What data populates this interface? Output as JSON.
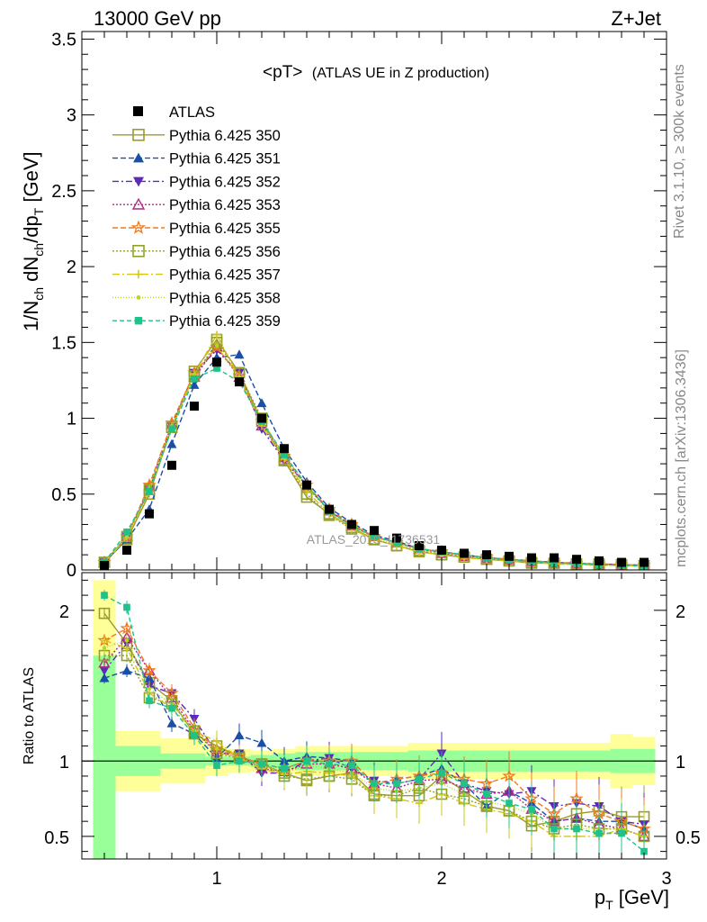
{
  "header": {
    "energy": "13000 GeV pp",
    "process": "Z+Jet"
  },
  "side_text": {
    "rivet": "Rivet 3.1.10, ≥ 300k events",
    "mcplots": "mcplots.cern.ch [arXiv:1306.3436]"
  },
  "watermark": "ATLAS_2019_I1736531",
  "chart_data": [
    {
      "type": "scatter",
      "title": "<pT> (ATLAS UE in Z production)",
      "title_main": "<pT>",
      "title_rest": "(ATLAS UE in Z production)",
      "ylabel": "1/N_ch dN_ch/dp_T [GeV]",
      "xlabel": "p_T [GeV]",
      "xlim": [
        0.4,
        3.0
      ],
      "ylim": [
        0,
        3.55
      ],
      "yticks": [
        0,
        0.5,
        1,
        1.5,
        2,
        2.5,
        3,
        3.5
      ],
      "ytick_labels": [
        "0",
        "0.5",
        "1",
        "1.5",
        "2",
        "2.5",
        "3",
        "3.5"
      ],
      "legend_placement": "top-left",
      "x": [
        0.5,
        0.6,
        0.7,
        0.8,
        0.9,
        1.0,
        1.1,
        1.2,
        1.3,
        1.4,
        1.5,
        1.6,
        1.7,
        1.8,
        1.9,
        2.0,
        2.1,
        2.2,
        2.3,
        2.4,
        2.5,
        2.6,
        2.7,
        2.8,
        2.9
      ],
      "data": {
        "name": "ATLAS",
        "values": [
          0.03,
          0.13,
          0.37,
          0.69,
          1.08,
          1.37,
          1.24,
          1.0,
          0.8,
          0.56,
          0.4,
          0.3,
          0.26,
          0.21,
          0.16,
          0.13,
          0.11,
          0.1,
          0.09,
          0.08,
          0.08,
          0.07,
          0.06,
          0.05,
          0.05
        ]
      },
      "series": [
        {
          "name": "Pythia 6.425 350",
          "color": "#9b9b2e",
          "dash": "",
          "marker": "square-open",
          "values": [
            0.05,
            0.2,
            0.5,
            0.94,
            1.31,
            1.52,
            1.3,
            0.98,
            0.72,
            0.48,
            0.37,
            0.28,
            0.2,
            0.16,
            0.12,
            0.1,
            0.085,
            0.07,
            0.06,
            0.045,
            0.045,
            0.04,
            0.04,
            0.035,
            0.03
          ]
        },
        {
          "name": "Pythia 6.425 351",
          "color": "#1a4fa8",
          "dash": "6,3",
          "marker": "triangle-up",
          "values": [
            0.05,
            0.2,
            0.4,
            0.83,
            1.22,
            1.4,
            1.42,
            1.1,
            0.8,
            0.58,
            0.41,
            0.31,
            0.23,
            0.19,
            0.14,
            0.12,
            0.1,
            0.08,
            0.07,
            0.06,
            0.05,
            0.04,
            0.04,
            0.035,
            0.03
          ]
        },
        {
          "name": "Pythia 6.425 352",
          "color": "#5b2ab8",
          "dash": "7,3,2,3",
          "marker": "triangle-down",
          "values": [
            0.05,
            0.22,
            0.53,
            0.95,
            1.3,
            1.45,
            1.3,
            0.93,
            0.72,
            0.56,
            0.39,
            0.29,
            0.22,
            0.18,
            0.14,
            0.12,
            0.1,
            0.08,
            0.07,
            0.06,
            0.05,
            0.045,
            0.04,
            0.035,
            0.03
          ]
        },
        {
          "name": "Pythia 6.425 353",
          "color": "#b52685",
          "dash": "2,2",
          "marker": "triangle-open",
          "values": [
            0.05,
            0.22,
            0.55,
            0.96,
            1.27,
            1.47,
            1.27,
            0.95,
            0.74,
            0.55,
            0.39,
            0.29,
            0.22,
            0.18,
            0.14,
            0.11,
            0.09,
            0.075,
            0.065,
            0.055,
            0.045,
            0.04,
            0.035,
            0.03,
            0.025
          ]
        },
        {
          "name": "Pythia 6.425 355",
          "color": "#f07a1f",
          "dash": "6,3",
          "marker": "star-open",
          "values": [
            0.05,
            0.22,
            0.56,
            0.97,
            1.3,
            1.47,
            1.28,
            0.98,
            0.75,
            0.56,
            0.4,
            0.3,
            0.22,
            0.18,
            0.14,
            0.12,
            0.095,
            0.085,
            0.07,
            0.06,
            0.05,
            0.045,
            0.04,
            0.035,
            0.03
          ]
        },
        {
          "name": "Pythia 6.425 356",
          "color": "#8fa126",
          "dash": "2,2",
          "marker": "square-open",
          "values": [
            0.05,
            0.22,
            0.53,
            0.94,
            1.28,
            1.5,
            1.3,
            1.0,
            0.73,
            0.5,
            0.36,
            0.27,
            0.2,
            0.16,
            0.13,
            0.1,
            0.085,
            0.07,
            0.06,
            0.05,
            0.045,
            0.04,
            0.035,
            0.03,
            0.025
          ]
        },
        {
          "name": "Pythia 6.425 357",
          "color": "#d4c416",
          "dash": "8,3,2,3",
          "marker": "cross",
          "values": [
            0.05,
            0.21,
            0.52,
            0.93,
            1.29,
            1.55,
            1.27,
            0.95,
            0.73,
            0.52,
            0.37,
            0.27,
            0.2,
            0.16,
            0.12,
            0.1,
            0.08,
            0.07,
            0.06,
            0.05,
            0.04,
            0.035,
            0.03,
            0.03,
            0.025
          ]
        },
        {
          "name": "Pythia 6.425 358",
          "color": "#b8d626",
          "dash": "1,2",
          "marker": "dot",
          "values": [
            0.05,
            0.22,
            0.54,
            0.95,
            1.29,
            1.48,
            1.27,
            0.97,
            0.74,
            0.55,
            0.38,
            0.28,
            0.21,
            0.17,
            0.13,
            0.11,
            0.09,
            0.075,
            0.065,
            0.055,
            0.045,
            0.04,
            0.035,
            0.03,
            0.025
          ]
        },
        {
          "name": "Pythia 6.425 359",
          "color": "#1fc38a",
          "dash": "5,3",
          "marker": "square-filled",
          "values": [
            0.05,
            0.25,
            0.52,
            0.93,
            1.26,
            1.33,
            1.24,
            0.98,
            0.76,
            0.56,
            0.39,
            0.29,
            0.22,
            0.18,
            0.14,
            0.12,
            0.1,
            0.08,
            0.065,
            0.055,
            0.045,
            0.04,
            0.035,
            0.03,
            0.025
          ]
        }
      ]
    },
    {
      "type": "scatter",
      "title": "",
      "ylabel": "Ratio to ATLAS",
      "xlabel": "p_T [GeV]",
      "xlim": [
        0.4,
        3.0
      ],
      "ylim": [
        0.35,
        2.25
      ],
      "yticks": [
        0.5,
        1,
        2
      ],
      "ytick_labels": [
        "0.5",
        "1",
        "2"
      ],
      "xticks": [
        1,
        2,
        3
      ],
      "xtick_labels": [
        "1",
        "2",
        "3"
      ],
      "reference_line": 1,
      "band_inner_upper": [
        1.7,
        1.1,
        1.1,
        1.05,
        1.05,
        1.03,
        1.03,
        1.04,
        1.05,
        1.06,
        1.06,
        1.06,
        1.06,
        1.06,
        1.07,
        1.07,
        1.07,
        1.07,
        1.07,
        1.07,
        1.07,
        1.07,
        1.07,
        1.08,
        1.08
      ],
      "band_inner_lower": [
        0.3,
        0.9,
        0.9,
        0.95,
        0.95,
        0.97,
        0.97,
        0.96,
        0.95,
        0.94,
        0.94,
        0.94,
        0.94,
        0.94,
        0.93,
        0.93,
        0.93,
        0.93,
        0.93,
        0.93,
        0.93,
        0.93,
        0.93,
        0.92,
        0.92
      ],
      "band_outer_upper": [
        2.2,
        1.2,
        1.2,
        1.15,
        1.15,
        1.1,
        1.08,
        1.07,
        1.08,
        1.1,
        1.1,
        1.1,
        1.1,
        1.1,
        1.12,
        1.12,
        1.12,
        1.12,
        1.12,
        1.12,
        1.12,
        1.12,
        1.12,
        1.18,
        1.16
      ],
      "band_outer_lower": [
        0.3,
        0.8,
        0.8,
        0.85,
        0.85,
        0.9,
        0.92,
        0.93,
        0.92,
        0.9,
        0.9,
        0.9,
        0.9,
        0.9,
        0.88,
        0.88,
        0.88,
        0.88,
        0.88,
        0.88,
        0.88,
        0.88,
        0.88,
        0.82,
        0.84
      ],
      "series": [
        {
          "name": "Pythia 6.425 350",
          "values": [
            1.98,
            1.78,
            1.52,
            1.4,
            1.18,
            1.1,
            1.03,
            0.98,
            0.92,
            0.87,
            0.9,
            0.92,
            0.78,
            0.77,
            0.77,
            0.9,
            0.8,
            0.7,
            0.67,
            0.57,
            0.6,
            0.65,
            0.67,
            0.63,
            0.63
          ]
        },
        {
          "name": "Pythia 6.425 351",
          "values": [
            1.55,
            1.6,
            1.55,
            1.25,
            1.18,
            1.02,
            1.17,
            1.12,
            1.0,
            1.03,
            1.02,
            1.0,
            0.85,
            0.88,
            0.9,
            0.95,
            0.85,
            0.7,
            0.8,
            0.72,
            0.6,
            0.62,
            0.6,
            0.6,
            0.55
          ]
        },
        {
          "name": "Pythia 6.425 352",
          "values": [
            1.6,
            1.78,
            1.5,
            1.45,
            1.28,
            1.05,
            1.05,
            0.92,
            0.92,
            1.0,
            1.02,
            0.95,
            0.87,
            0.85,
            0.88,
            1.05,
            0.85,
            0.8,
            0.78,
            0.8,
            0.7,
            0.72,
            0.7,
            0.6,
            0.58
          ]
        },
        {
          "name": "Pythia 6.425 353",
          "values": [
            1.65,
            1.82,
            1.6,
            1.42,
            1.2,
            1.06,
            1.03,
            0.95,
            0.93,
            0.98,
            0.98,
            0.95,
            0.85,
            0.82,
            0.87,
            0.88,
            0.82,
            0.78,
            0.8,
            0.68,
            0.6,
            0.62,
            0.58,
            0.55,
            0.5
          ]
        },
        {
          "name": "Pythia 6.425 355",
          "values": [
            1.8,
            1.88,
            1.6,
            1.45,
            1.22,
            1.08,
            1.03,
            0.98,
            0.95,
            1.0,
            1.0,
            1.0,
            0.85,
            0.88,
            0.9,
            0.92,
            0.88,
            0.85,
            0.9,
            0.75,
            0.65,
            0.75,
            0.65,
            0.6,
            0.55
          ]
        },
        {
          "name": "Pythia 6.425 356",
          "values": [
            1.7,
            1.7,
            1.42,
            1.38,
            1.2,
            1.05,
            1.02,
            0.98,
            0.9,
            0.88,
            0.9,
            0.88,
            0.77,
            0.77,
            0.82,
            0.78,
            0.75,
            0.7,
            0.67,
            0.6,
            0.55,
            0.58,
            0.55,
            0.55,
            0.5
          ]
        },
        {
          "name": "Pythia 6.425 357",
          "values": [
            1.8,
            1.75,
            1.45,
            1.35,
            1.2,
            1.13,
            1.02,
            0.95,
            0.91,
            0.93,
            0.92,
            0.9,
            0.77,
            0.75,
            0.72,
            0.78,
            0.72,
            0.68,
            0.65,
            0.6,
            0.5,
            0.5,
            0.5,
            0.55,
            0.5
          ]
        },
        {
          "name": "Pythia 6.425 358",
          "values": [
            1.75,
            1.8,
            1.48,
            1.38,
            1.2,
            1.08,
            1.02,
            0.97,
            0.92,
            0.97,
            0.95,
            0.92,
            0.82,
            0.8,
            0.82,
            0.85,
            0.78,
            0.73,
            0.7,
            0.65,
            0.55,
            0.55,
            0.55,
            0.55,
            0.5
          ]
        },
        {
          "name": "Pythia 6.425 359",
          "values": [
            2.1,
            2.02,
            1.4,
            1.35,
            1.17,
            0.97,
            1.0,
            0.98,
            0.95,
            1.0,
            0.98,
            0.97,
            0.85,
            0.85,
            0.88,
            0.92,
            0.85,
            0.78,
            0.72,
            0.68,
            0.55,
            0.55,
            0.52,
            0.52,
            0.4
          ]
        }
      ]
    }
  ]
}
